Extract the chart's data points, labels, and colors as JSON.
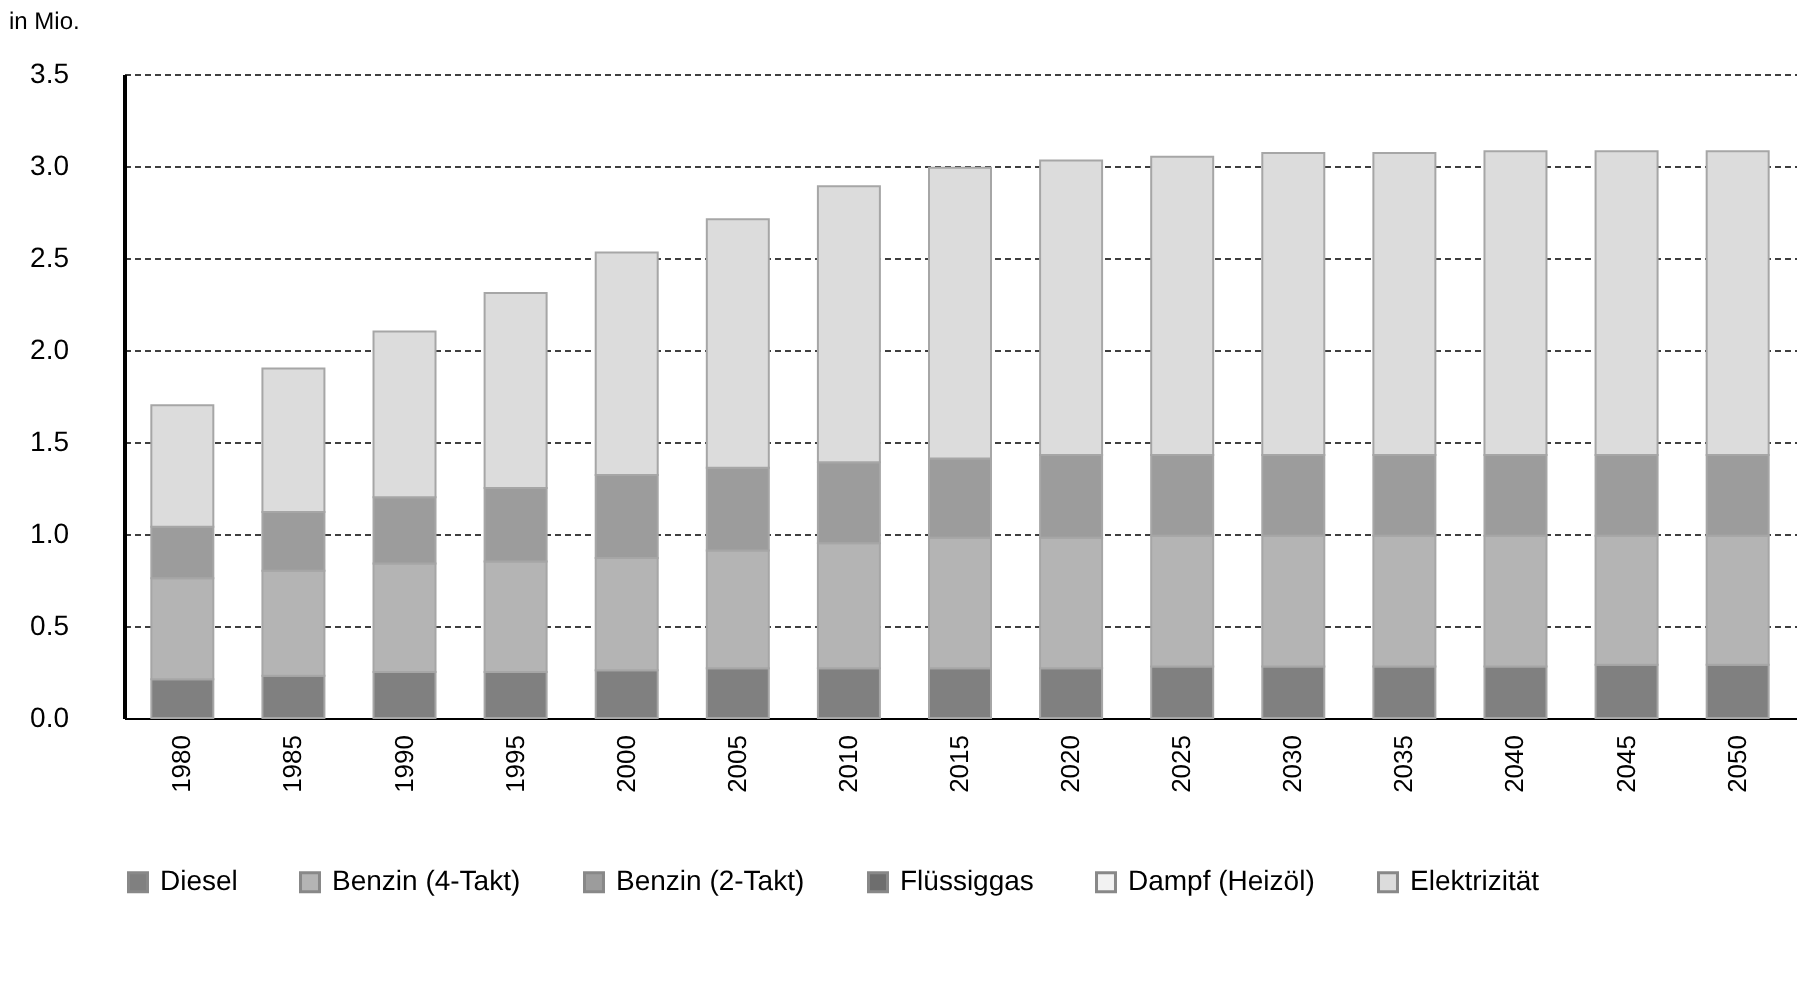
{
  "chart_data": {
    "type": "bar",
    "stacked": true,
    "ylabel": "in Mio.",
    "categories": [
      "1980",
      "1985",
      "1990",
      "1995",
      "2000",
      "2005",
      "2010",
      "2015",
      "2020",
      "2025",
      "2030",
      "2035",
      "2040",
      "2045",
      "2050"
    ],
    "series": [
      {
        "name": "Diesel",
        "color": "#808080",
        "values": [
          0.21,
          0.23,
          0.25,
          0.25,
          0.26,
          0.27,
          0.27,
          0.27,
          0.27,
          0.28,
          0.28,
          0.28,
          0.28,
          0.29,
          0.29
        ]
      },
      {
        "name": "Benzin (4-Takt)",
        "color": "#b4b4b4",
        "values": [
          0.55,
          0.57,
          0.59,
          0.6,
          0.61,
          0.64,
          0.68,
          0.71,
          0.71,
          0.71,
          0.71,
          0.71,
          0.71,
          0.7,
          0.7
        ]
      },
      {
        "name": "Benzin (2-Takt)",
        "color": "#9c9c9c",
        "values": [
          0.28,
          0.32,
          0.36,
          0.4,
          0.45,
          0.45,
          0.44,
          0.43,
          0.45,
          0.44,
          0.44,
          0.44,
          0.44,
          0.44,
          0.44
        ]
      },
      {
        "name": "Flüssiggas",
        "color": "#6e6e6e",
        "values": [
          null,
          null,
          null,
          null,
          null,
          null,
          null,
          null,
          null,
          null,
          null,
          null,
          null,
          null,
          null
        ]
      },
      {
        "name": "Dampf (Heizöl)",
        "color": "#f2f2f2",
        "values": [
          null,
          null,
          null,
          null,
          null,
          null,
          null,
          null,
          null,
          null,
          null,
          null,
          null,
          null,
          null
        ]
      },
      {
        "name": "Elektrizität",
        "color": "#dcdcdc",
        "values": [
          0.66,
          0.78,
          0.9,
          1.06,
          1.21,
          1.35,
          1.5,
          1.58,
          1.6,
          1.62,
          1.64,
          1.64,
          1.65,
          1.65,
          1.65
        ]
      }
    ],
    "ylim": [
      0,
      3.5
    ],
    "yticks": [
      {
        "value": 0,
        "label": "0.0"
      },
      0.5,
      {
        "value": 1,
        "label": "1.0"
      },
      1.5,
      {
        "value": 2,
        "label": "2.0"
      },
      2.5,
      {
        "value": 3,
        "label": "3.0"
      },
      3.5
    ],
    "grid": "y",
    "legend": "bottom"
  }
}
